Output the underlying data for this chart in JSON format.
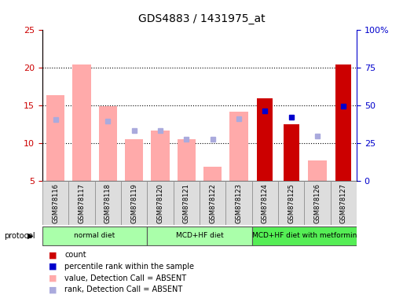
{
  "title": "GDS4883 / 1431975_at",
  "samples": [
    "GSM878116",
    "GSM878117",
    "GSM878118",
    "GSM878119",
    "GSM878120",
    "GSM878121",
    "GSM878122",
    "GSM878123",
    "GSM878124",
    "GSM878125",
    "GSM878126",
    "GSM878127"
  ],
  "value_absent": [
    16.4,
    20.5,
    14.9,
    10.6,
    11.7,
    10.6,
    6.9,
    14.2,
    null,
    null,
    7.8,
    null
  ],
  "rank_absent": [
    13.2,
    null,
    13.0,
    11.7,
    11.7,
    10.6,
    10.6,
    13.3,
    null,
    null,
    11.0,
    null
  ],
  "count": [
    null,
    null,
    null,
    null,
    null,
    null,
    null,
    null,
    16.0,
    12.5,
    null,
    20.5
  ],
  "percentile": [
    null,
    null,
    null,
    null,
    null,
    null,
    null,
    null,
    14.3,
    13.5,
    null,
    14.9
  ],
  "ylim_left": [
    5,
    25
  ],
  "ylim_right": [
    0,
    100
  ],
  "yticks_left": [
    5,
    10,
    15,
    20,
    25
  ],
  "yticks_right": [
    0,
    25,
    50,
    75,
    100
  ],
  "ytick_labels_right": [
    "0",
    "25",
    "50",
    "75",
    "100%"
  ],
  "bar_width": 0.5,
  "color_value_absent": "#ffaaaa",
  "color_rank_absent": "#aaaadd",
  "color_count": "#cc0000",
  "color_percentile": "#0000cc",
  "background_plot": "#ffffff",
  "left_axis_color": "#cc0000",
  "right_axis_color": "#0000cc",
  "proto_ranges": [
    [
      0,
      3,
      "normal diet",
      "#aaffaa"
    ],
    [
      4,
      7,
      "MCD+HF diet",
      "#aaffaa"
    ],
    [
      8,
      11,
      "MCD+HF diet with metformin",
      "#55ee55"
    ]
  ],
  "legend_items": [
    {
      "color": "#cc0000",
      "label": "count"
    },
    {
      "color": "#0000cc",
      "label": "percentile rank within the sample"
    },
    {
      "color": "#ffaaaa",
      "label": "value, Detection Call = ABSENT"
    },
    {
      "color": "#aaaadd",
      "label": "rank, Detection Call = ABSENT"
    }
  ]
}
